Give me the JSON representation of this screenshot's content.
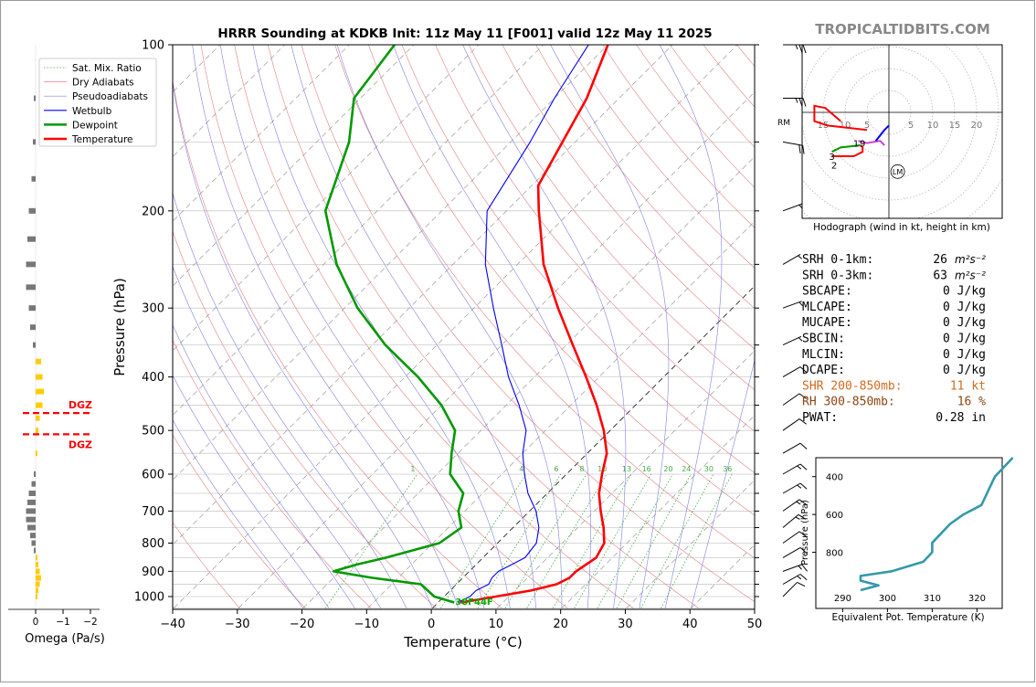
{
  "title": "HRRR Sounding at KDKB Init: 11z May 11 [F001] valid 12z May 11 2025",
  "brand": "TROPICALTIDBITS.COM",
  "colors": {
    "temperature": "#ff0000",
    "dewpoint": "#009900",
    "wetbulb": "#0000ee",
    "dry_adiabat": "#e08080",
    "moist_adiabat": "#8080e0",
    "mixing_ratio": "#44aa44",
    "isotherm": "#aaaaaa",
    "theta_e": "#3399aa",
    "dgz": "#ff0000",
    "omega_up": "#ffcc00",
    "omega_down": "#777777",
    "shr_label": "#d2691e",
    "rh_label": "#8b4513"
  },
  "legend": [
    {
      "label": "Sat. Mix. Ratio",
      "style": "dotted",
      "color": "#44aa44"
    },
    {
      "label": "Dry Adiabats",
      "style": "solid-thin",
      "color": "#e08080"
    },
    {
      "label": "Pseudoadiabats",
      "style": "solid-thin",
      "color": "#8080e0"
    },
    {
      "label": "Wetbulb",
      "style": "solid",
      "color": "#0000ee"
    },
    {
      "label": "Dewpoint",
      "style": "bold",
      "color": "#009900"
    },
    {
      "label": "Temperature",
      "style": "bold",
      "color": "#ff0000"
    }
  ],
  "skewt": {
    "ylabel": "Pressure (hPa)",
    "xlabel": "Temperature (°C)",
    "pressure_ticks": [
      "100",
      "200",
      "300",
      "400",
      "500",
      "600",
      "700",
      "800",
      "900",
      "1000"
    ],
    "temp_ticks": [
      "−40",
      "−30",
      "−20",
      "−10",
      "0",
      "10",
      "20",
      "30",
      "40",
      "50"
    ],
    "mixing_ratio_labels": [
      "1",
      "4",
      "6",
      "8",
      "10",
      "13",
      "16",
      "20",
      "24",
      "30",
      "36"
    ],
    "surface_label": "38F44F"
  },
  "chart_data": {
    "type": "line",
    "title": "HRRR Sounding at KDKB Init: 11z May 11 [F001] valid 12z May 11 2025",
    "xlabel": "Temperature (°C)",
    "ylabel": "Pressure (hPa)",
    "ylim": [
      1050,
      100
    ],
    "xlim": [
      -40,
      50
    ],
    "series": [
      {
        "name": "Temperature",
        "points": [
          [
            1025,
            3.5
          ],
          [
            1000,
            8
          ],
          [
            975,
            12.5
          ],
          [
            950,
            15.5
          ],
          [
            925,
            16.5
          ],
          [
            900,
            16.5
          ],
          [
            875,
            17
          ],
          [
            850,
            17.5
          ],
          [
            800,
            16.5
          ],
          [
            750,
            14
          ],
          [
            700,
            11
          ],
          [
            650,
            8
          ],
          [
            600,
            5.5
          ],
          [
            550,
            3
          ],
          [
            500,
            -1
          ],
          [
            450,
            -6
          ],
          [
            400,
            -12
          ],
          [
            350,
            -19
          ],
          [
            300,
            -27
          ],
          [
            250,
            -36
          ],
          [
            200,
            -45
          ],
          [
            180,
            -49
          ],
          [
            150,
            -52
          ],
          [
            125,
            -55
          ],
          [
            100,
            -60
          ]
        ]
      },
      {
        "name": "Dewpoint",
        "points": [
          [
            1025,
            2.5
          ],
          [
            1000,
            -1.5
          ],
          [
            950,
            -5.5
          ],
          [
            925,
            -14
          ],
          [
            900,
            -21
          ],
          [
            875,
            -18.5
          ],
          [
            850,
            -15
          ],
          [
            800,
            -9
          ],
          [
            750,
            -8
          ],
          [
            700,
            -11
          ],
          [
            650,
            -13
          ],
          [
            600,
            -18
          ],
          [
            550,
            -21
          ],
          [
            500,
            -24
          ],
          [
            450,
            -30
          ],
          [
            400,
            -38
          ],
          [
            350,
            -48
          ],
          [
            300,
            -58
          ],
          [
            250,
            -68
          ],
          [
            200,
            -78
          ],
          [
            150,
            -85
          ],
          [
            125,
            -91
          ],
          [
            100,
            -93
          ]
        ]
      },
      {
        "name": "Wetbulb",
        "points": [
          [
            1025,
            3
          ],
          [
            1000,
            4
          ],
          [
            975,
            4
          ],
          [
            950,
            5
          ],
          [
            925,
            4.5
          ],
          [
            900,
            4.5
          ],
          [
            875,
            5.5
          ],
          [
            850,
            6.5
          ],
          [
            800,
            6
          ],
          [
            750,
            4
          ],
          [
            700,
            1
          ],
          [
            650,
            -3
          ],
          [
            600,
            -6.5
          ],
          [
            550,
            -10
          ],
          [
            500,
            -13
          ],
          [
            450,
            -18
          ],
          [
            400,
            -24
          ],
          [
            350,
            -30
          ],
          [
            300,
            -37
          ],
          [
            250,
            -45
          ],
          [
            200,
            -53
          ],
          [
            150,
            -57
          ],
          [
            125,
            -60
          ],
          [
            100,
            -63
          ]
        ]
      }
    ]
  },
  "omega": {
    "xlabel": "Omega (Pa/s)",
    "ticks": [
      "0",
      "−1",
      "−2"
    ],
    "dgz_label_top": "DGZ",
    "dgz_label_bottom": "DGZ",
    "bars": [
      [
        1000,
        -0.05
      ],
      [
        975,
        -0.1
      ],
      [
        950,
        -0.15
      ],
      [
        925,
        -0.2
      ],
      [
        900,
        -0.15
      ],
      [
        875,
        -0.1
      ],
      [
        850,
        -0.05
      ],
      [
        825,
        0.05
      ],
      [
        800,
        0.15
      ],
      [
        775,
        0.2
      ],
      [
        750,
        0.3
      ],
      [
        725,
        0.35
      ],
      [
        700,
        0.35
      ],
      [
        675,
        0.3
      ],
      [
        650,
        0.25
      ],
      [
        625,
        0.15
      ],
      [
        600,
        0.05
      ],
      [
        550,
        -0.05
      ],
      [
        500,
        -0.1
      ],
      [
        475,
        -0.15
      ],
      [
        450,
        -0.25
      ],
      [
        425,
        -0.3
      ],
      [
        400,
        -0.25
      ],
      [
        375,
        -0.2
      ],
      [
        350,
        0.1
      ],
      [
        325,
        0.2
      ],
      [
        300,
        0.25
      ],
      [
        275,
        0.35
      ],
      [
        250,
        0.35
      ],
      [
        225,
        0.3
      ],
      [
        200,
        0.25
      ],
      [
        175,
        0.15
      ],
      [
        150,
        0.1
      ],
      [
        125,
        0.05
      ]
    ],
    "dgz_pressures": [
      465,
      508
    ]
  },
  "hodograph": {
    "caption": "Hodograph (wind in kt, height in km)",
    "ring_labels_left": [
      "15",
      "10",
      "5"
    ],
    "ring_labels_right": [
      "5",
      "10",
      "15",
      "20"
    ],
    "rm_label": "RM",
    "lm_label": "LM",
    "height_labels": [
      "1",
      "2",
      "3",
      "9"
    ]
  },
  "stats": [
    {
      "label": "SRH 0-1km:",
      "value": "26",
      "unit": "m²s⁻²",
      "color": "#000000"
    },
    {
      "label": "SRH 0-3km:",
      "value": "63",
      "unit": "m²s⁻²",
      "color": "#000000"
    },
    {
      "label": "SBCAPE:",
      "value": "0 J/kg",
      "unit": "",
      "color": "#000000"
    },
    {
      "label": "MLCAPE:",
      "value": "0 J/kg",
      "unit": "",
      "color": "#000000"
    },
    {
      "label": "MUCAPE:",
      "value": "0 J/kg",
      "unit": "",
      "color": "#000000"
    },
    {
      "label": "SBCIN:",
      "value": "0 J/kg",
      "unit": "",
      "color": "#000000"
    },
    {
      "label": "MLCIN:",
      "value": "0 J/kg",
      "unit": "",
      "color": "#000000"
    },
    {
      "label": "DCAPE:",
      "value": "0 J/kg",
      "unit": "",
      "color": "#000000"
    },
    {
      "label": "SHR 200-850mb:",
      "value": "11 kt",
      "unit": "",
      "color": "#d2691e"
    },
    {
      "label": "RH 300-850mb:",
      "value": "16 %",
      "unit": "",
      "color": "#8b4513"
    },
    {
      "label": "PWAT:",
      "value": "0.28 in",
      "unit": "",
      "color": "#000000"
    }
  ],
  "theta_e": {
    "ylabel": "Pressure (hPa)",
    "xlabel": "Equivalent Pot. Temperature (K)",
    "y_ticks": [
      "400",
      "600",
      "800"
    ],
    "x_ticks": [
      "290",
      "300",
      "310",
      "320"
    ],
    "points": [
      [
        1000,
        294
      ],
      [
        975,
        298
      ],
      [
        950,
        294
      ],
      [
        925,
        294
      ],
      [
        900,
        301
      ],
      [
        850,
        308
      ],
      [
        800,
        310
      ],
      [
        750,
        310
      ],
      [
        700,
        312
      ],
      [
        650,
        314
      ],
      [
        600,
        317
      ],
      [
        550,
        321
      ],
      [
        500,
        322
      ],
      [
        450,
        323
      ],
      [
        400,
        324
      ],
      [
        350,
        326
      ],
      [
        300,
        328
      ]
    ]
  },
  "wind_barbs": [
    {
      "p": 1000,
      "dir": 225,
      "spd": 10
    },
    {
      "p": 950,
      "dir": 240,
      "spd": 15
    },
    {
      "p": 900,
      "dir": 250,
      "spd": 15
    },
    {
      "p": 850,
      "dir": 240,
      "spd": 10
    },
    {
      "p": 800,
      "dir": 235,
      "spd": 10
    },
    {
      "p": 750,
      "dir": 230,
      "spd": 15
    },
    {
      "p": 700,
      "dir": 235,
      "spd": 15
    },
    {
      "p": 650,
      "dir": 240,
      "spd": 15
    },
    {
      "p": 600,
      "dir": 240,
      "spd": 15
    },
    {
      "p": 550,
      "dir": 240,
      "spd": 10
    },
    {
      "p": 500,
      "dir": 235,
      "spd": 10
    },
    {
      "p": 450,
      "dir": 235,
      "spd": 10
    },
    {
      "p": 400,
      "dir": 240,
      "spd": 10
    },
    {
      "p": 350,
      "dir": 245,
      "spd": 5
    },
    {
      "p": 300,
      "dir": 250,
      "spd": 5
    },
    {
      "p": 250,
      "dir": 240,
      "spd": 5
    },
    {
      "p": 200,
      "dir": 250,
      "spd": 5
    },
    {
      "p": 150,
      "dir": 280,
      "spd": 20
    },
    {
      "p": 125,
      "dir": 270,
      "spd": 25
    },
    {
      "p": 100,
      "dir": 270,
      "spd": 25
    }
  ]
}
